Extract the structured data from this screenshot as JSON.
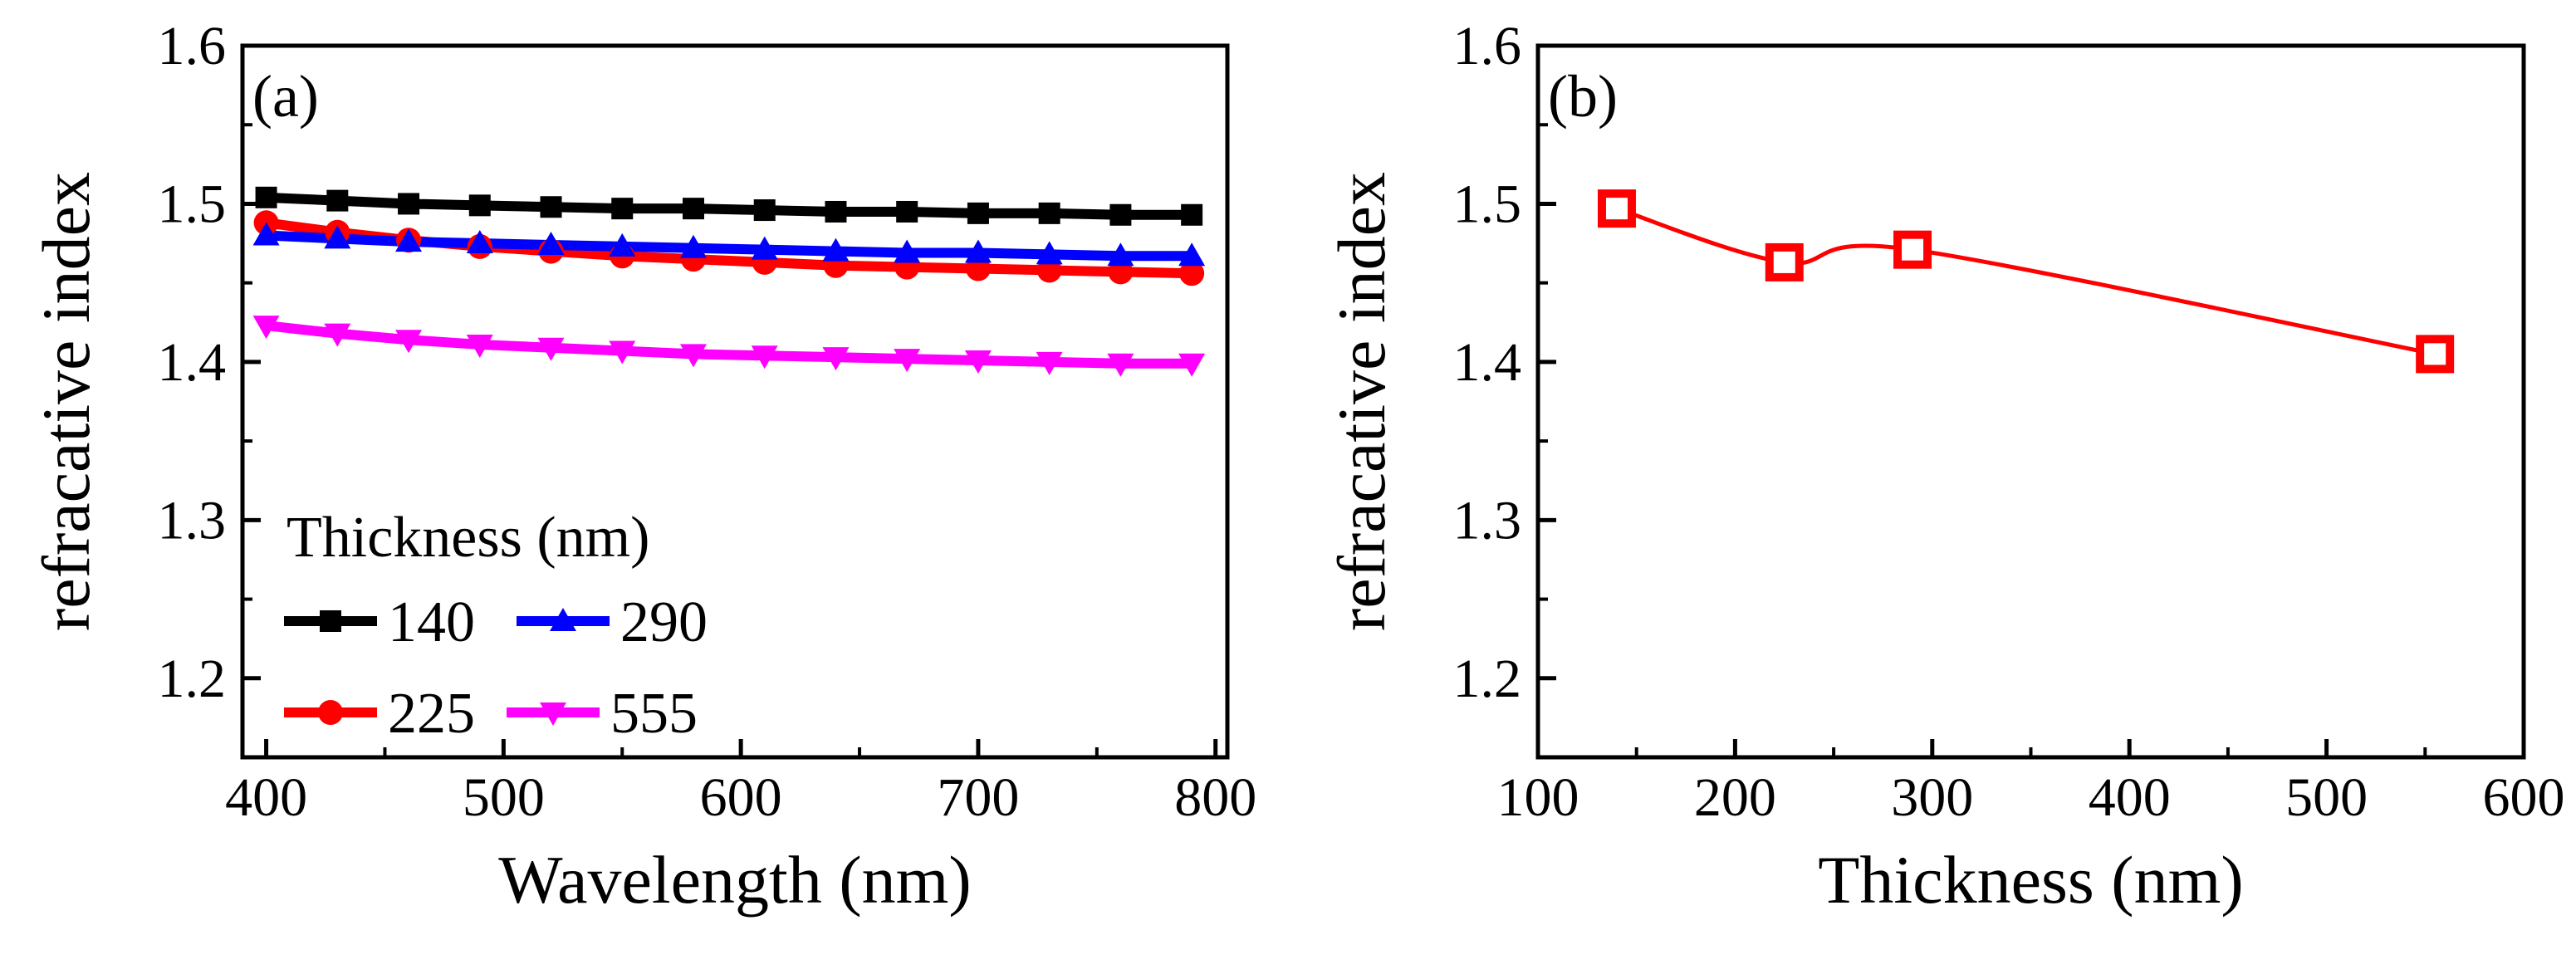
{
  "chart_data": [
    {
      "panel": "(a)",
      "type": "line",
      "xlabel": "Wavelength (nm)",
      "ylabel": "refracative index",
      "xlim": [
        390,
        805
      ],
      "ylim": [
        1.15,
        1.6
      ],
      "xticks": [
        400,
        500,
        600,
        700,
        800
      ],
      "yticks": [
        1.2,
        1.3,
        1.4,
        1.5,
        1.6
      ],
      "xtick_labels": [
        "400",
        "500",
        "600",
        "700",
        "800"
      ],
      "ytick_labels": [
        "1.2",
        "1.3",
        "1.4",
        "1.5",
        "1.6"
      ],
      "legend_title": "Thickness (nm)",
      "x": [
        400,
        430,
        460,
        490,
        520,
        550,
        580,
        610,
        640,
        670,
        700,
        730,
        760,
        790
      ],
      "series": [
        {
          "name": "140",
          "color": "#000000",
          "marker": "square",
          "values": [
            1.504,
            1.502,
            1.5,
            1.499,
            1.498,
            1.497,
            1.497,
            1.496,
            1.495,
            1.495,
            1.494,
            1.494,
            1.493,
            1.493
          ]
        },
        {
          "name": "225",
          "color": "#ff0000",
          "marker": "circle",
          "values": [
            1.488,
            1.482,
            1.477,
            1.473,
            1.47,
            1.467,
            1.465,
            1.463,
            1.461,
            1.46,
            1.459,
            1.458,
            1.457,
            1.456
          ]
        },
        {
          "name": "290",
          "color": "#0000ff",
          "marker": "triangle-up",
          "values": [
            1.48,
            1.478,
            1.476,
            1.475,
            1.474,
            1.473,
            1.472,
            1.471,
            1.47,
            1.469,
            1.469,
            1.468,
            1.467,
            1.467
          ]
        },
        {
          "name": "555",
          "color": "#ff00ff",
          "marker": "triangle-down",
          "values": [
            1.423,
            1.418,
            1.414,
            1.411,
            1.409,
            1.407,
            1.405,
            1.404,
            1.403,
            1.402,
            1.401,
            1.4,
            1.399,
            1.399
          ]
        }
      ]
    },
    {
      "panel": "(b)",
      "type": "scatter",
      "xlabel": "Thickness (nm)",
      "ylabel": "refracative index",
      "xlim": [
        100,
        600
      ],
      "ylim": [
        1.15,
        1.6
      ],
      "xticks": [
        100,
        200,
        300,
        400,
        500,
        600
      ],
      "yticks": [
        1.2,
        1.3,
        1.4,
        1.5,
        1.6
      ],
      "xtick_labels": [
        "100",
        "200",
        "300",
        "400",
        "500",
        "600"
      ],
      "ytick_labels": [
        "1.2",
        "1.3",
        "1.4",
        "1.5",
        "1.6"
      ],
      "series": [
        {
          "name": "refractive index",
          "color": "#ff0000",
          "marker": "open-square",
          "x": [
            140,
            225,
            290,
            555
          ],
          "values": [
            1.497,
            1.463,
            1.471,
            1.405
          ]
        }
      ]
    }
  ]
}
